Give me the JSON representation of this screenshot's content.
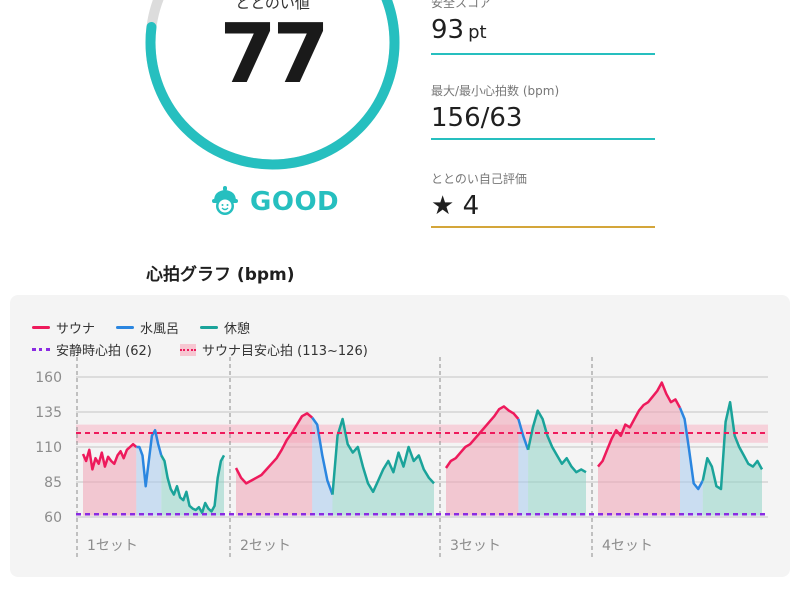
{
  "gauge": {
    "label": "ととのい値",
    "value": "77",
    "progress": 0.77,
    "rating_text": "GOOD",
    "rating_icon": "smiling-face-in-sauna-hat-icon",
    "color": "#26bfbf"
  },
  "stats": [
    {
      "caption": "安全スコア",
      "value": "93",
      "unit": "pt",
      "rule_color": "#26bfbf"
    },
    {
      "caption": "最大/最小心拍数 (bpm)",
      "value": "156/63",
      "unit": "",
      "rule_color": "#26bfbf"
    },
    {
      "caption": "ととのい自己評価",
      "value": "★ 4",
      "unit": "",
      "rule_color": "#d4a63a"
    }
  ],
  "chart_section_title": "心拍グラフ (bpm)",
  "chart_data": {
    "type": "line",
    "ylabel": "",
    "yticks": [
      160,
      135,
      110,
      85,
      60
    ],
    "ylim": [
      60,
      160
    ],
    "legend": [
      {
        "name": "サウナ",
        "color": "#ee1a5c",
        "style": "line"
      },
      {
        "name": "水風呂",
        "color": "#2b86e0",
        "style": "line"
      },
      {
        "name": "休憩",
        "color": "#1aa39a",
        "style": "line"
      },
      {
        "name": "安静時心拍 (62)",
        "color": "#8a2be2",
        "style": "dashed"
      },
      {
        "name": "サウナ目安心拍 (113~126)",
        "color": "#f2a8b8",
        "style": "band"
      }
    ],
    "resting_hr": 62,
    "target_band": [
      113,
      126
    ],
    "target_line": 120,
    "sets": [
      {
        "label": "1セット",
        "segments": [
          {
            "phase": "sauna",
            "values": [
              105,
              100,
              108,
              94,
              102,
              98,
              106,
              96,
              103,
              100,
              98,
              104,
              107,
              102,
              108,
              110,
              112,
              110
            ]
          },
          {
            "phase": "water",
            "values": [
              110,
              104,
              82,
              100,
              118,
              122,
              112,
              104
            ]
          },
          {
            "phase": "rest",
            "values": [
              100,
              88,
              80,
              76,
              82,
              74,
              72,
              78,
              68,
              66,
              65,
              67,
              63,
              70,
              66,
              64,
              68,
              88,
              100,
              104
            ]
          }
        ]
      },
      {
        "label": "2セット",
        "segments": [
          {
            "phase": "sauna",
            "values": [
              95,
              88,
              84,
              86,
              88,
              90,
              94,
              98,
              102,
              108,
              115,
              120,
              126,
              132,
              134,
              131
            ]
          },
          {
            "phase": "water",
            "values": [
              126,
              104,
              86,
              76
            ]
          },
          {
            "phase": "rest",
            "values": [
              118,
              130,
              112,
              106,
              110,
              96,
              84,
              78,
              86,
              94,
              100,
              92,
              106,
              96,
              110,
              100,
              104,
              94,
              88,
              84
            ]
          }
        ]
      },
      {
        "label": "3セット",
        "segments": [
          {
            "phase": "sauna",
            "values": [
              95,
              100,
              102,
              106,
              110,
              112,
              116,
              120,
              124,
              128,
              132,
              137,
              139,
              136,
              134,
              130
            ]
          },
          {
            "phase": "water",
            "values": [
              118,
              108
            ]
          },
          {
            "phase": "rest",
            "values": [
              124,
              136,
              130,
              118,
              110,
              104,
              98,
              102,
              96,
              92,
              94,
              92
            ]
          }
        ]
      },
      {
        "label": "4セット",
        "segments": [
          {
            "phase": "sauna",
            "values": [
              96,
              100,
              108,
              116,
              122,
              118,
              126,
              124,
              130,
              136,
              140,
              142,
              146,
              150,
              156,
              148,
              142,
              144,
              138
            ]
          },
          {
            "phase": "water",
            "values": [
              130,
              108,
              84,
              80,
              86
            ]
          },
          {
            "phase": "rest",
            "values": [
              102,
              96,
              82,
              80,
              128,
              142,
              118,
              110,
              104,
              98,
              96,
              100,
              94
            ]
          }
        ]
      }
    ]
  }
}
